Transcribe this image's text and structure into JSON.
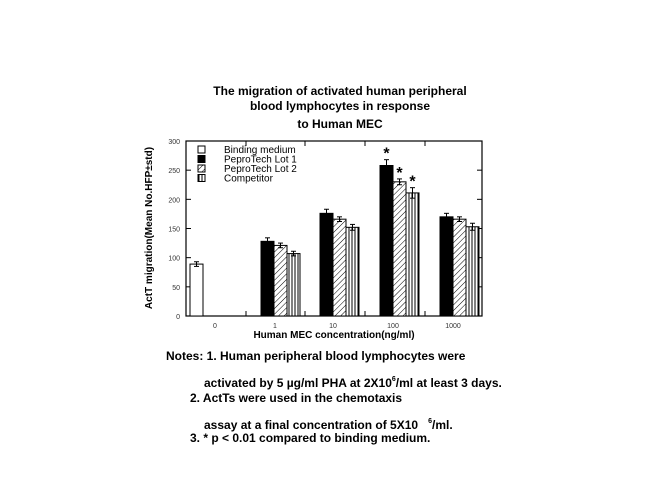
{
  "chart_data": {
    "type": "bar",
    "title": "The migration of activated human peripheral blood lymphocytes in response to Human MEC",
    "title_lines": [
      "The migration of activated human peripheral",
      "blood lymphocytes in response",
      "to Human MEC"
    ],
    "xlabel": "Human MEC concentration(ng/ml)",
    "ylabel": "ActT migration(Mean No.HFP±std)",
    "ylim": [
      0,
      300
    ],
    "yticks": [
      0,
      50,
      100,
      150,
      200,
      250,
      300
    ],
    "categories": [
      "0",
      "1",
      "10",
      "100",
      "1000"
    ],
    "legend_position": "upper-left",
    "series": [
      {
        "name": "Binding medium",
        "pattern": "white",
        "values": [
          89,
          null,
          null,
          null,
          null
        ],
        "errors": [
          4,
          null,
          null,
          null,
          null
        ]
      },
      {
        "name": "PeproTech Lot 1",
        "pattern": "black",
        "values": [
          null,
          128,
          176,
          258,
          170
        ],
        "errors": [
          null,
          6,
          7,
          10,
          6
        ]
      },
      {
        "name": "PeproTech Lot 2",
        "pattern": "diagonal-hatch",
        "values": [
          null,
          121,
          166,
          230,
          166
        ],
        "errors": [
          null,
          4,
          4,
          5,
          4
        ]
      },
      {
        "name": "Competitor",
        "pattern": "vertical-lines",
        "values": [
          null,
          107,
          152,
          211,
          153
        ],
        "errors": [
          null,
          4,
          5,
          9,
          6
        ]
      }
    ],
    "annotations": [
      {
        "text": "*",
        "category": "100",
        "series": "PeproTech Lot 1"
      },
      {
        "text": "*",
        "category": "100",
        "series": "PeproTech Lot 2"
      },
      {
        "text": "*",
        "category": "100",
        "series": "Competitor"
      }
    ],
    "grid": false
  },
  "notes": {
    "line1": "Notes: 1. Human peripheral blood lymphocytes were",
    "line2_a": "activated by 5 µg/ml PHA at 2X10",
    "line2_sup": "6",
    "line2_b": "/ml at least 3 days.",
    "line3": "2. ActTs were used in the chemotaxis",
    "line4_a": "assay at a final concentration of 5X10",
    "line4_sup": "6",
    "line4_b": "/ml.",
    "line5": "3. * p < 0.01 compared to binding medium."
  }
}
